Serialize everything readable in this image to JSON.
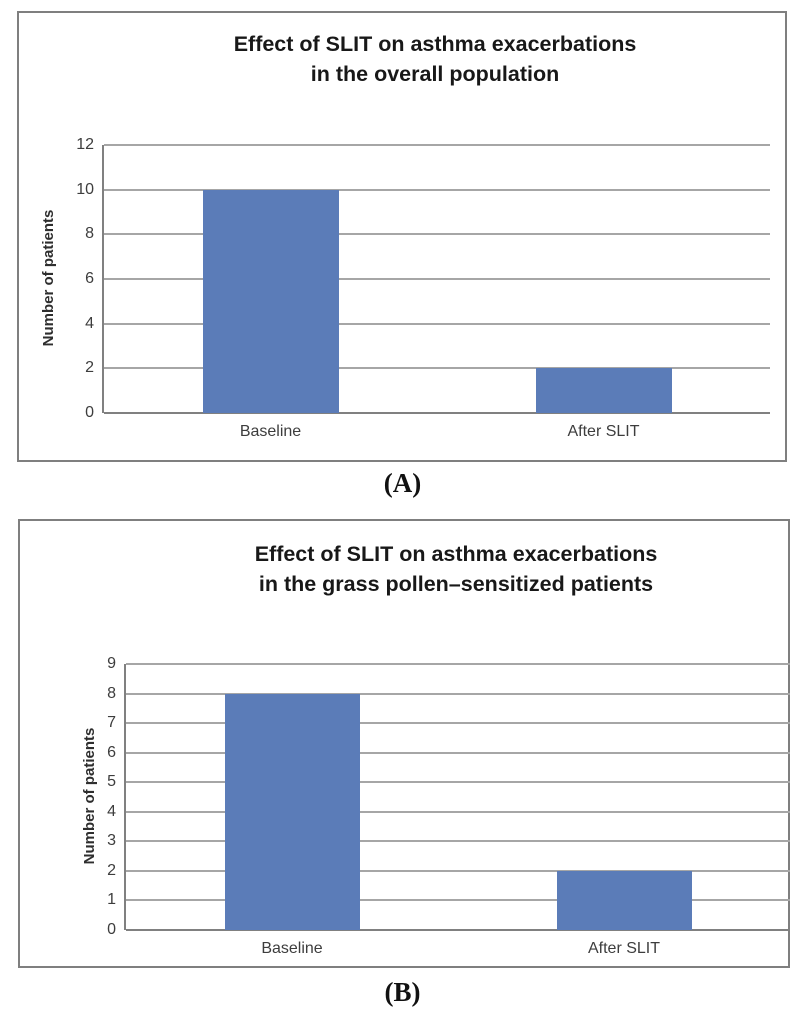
{
  "figure": {
    "background": "#ffffff",
    "panel_count": 2
  },
  "captions": {
    "a": "(A)",
    "b": "(B)"
  },
  "colors": {
    "bar": "#5b7cb8",
    "gridline": "#a6a6a6",
    "axis": "#808080",
    "panel_border": "#7f7f7f",
    "tick_text": "#3d3d3d",
    "title_text": "#181818"
  },
  "chart_data": [
    {
      "type": "bar",
      "title": "Effect of SLIT on asthma exacerbations in the overall population",
      "title_lines": [
        "Effect of SLIT on asthma exacerbations",
        "in the overall population"
      ],
      "categories": [
        "Baseline",
        "After SLIT"
      ],
      "values": [
        10,
        2
      ],
      "xlabel": "",
      "ylabel": "Number of patients",
      "ylim": [
        0,
        12
      ],
      "yticks": [
        0,
        2,
        4,
        6,
        8,
        10,
        12
      ],
      "grid": true,
      "legend": "none",
      "bar_color": "#5b7cb8"
    },
    {
      "type": "bar",
      "title": "Effect of SLIT on asthma exacerbations in the grass pollen–sensitized patients",
      "title_lines": [
        "Effect of SLIT on asthma exacerbations",
        "in the grass pollen–sensitized patients"
      ],
      "categories": [
        "Baseline",
        "After SLIT"
      ],
      "values": [
        8,
        2
      ],
      "xlabel": "",
      "ylabel": "Number of patients",
      "ylim": [
        0,
        9
      ],
      "yticks": [
        0,
        1,
        2,
        3,
        4,
        5,
        6,
        7,
        8,
        9
      ],
      "grid": true,
      "legend": "none",
      "bar_color": "#5b7cb8"
    }
  ]
}
